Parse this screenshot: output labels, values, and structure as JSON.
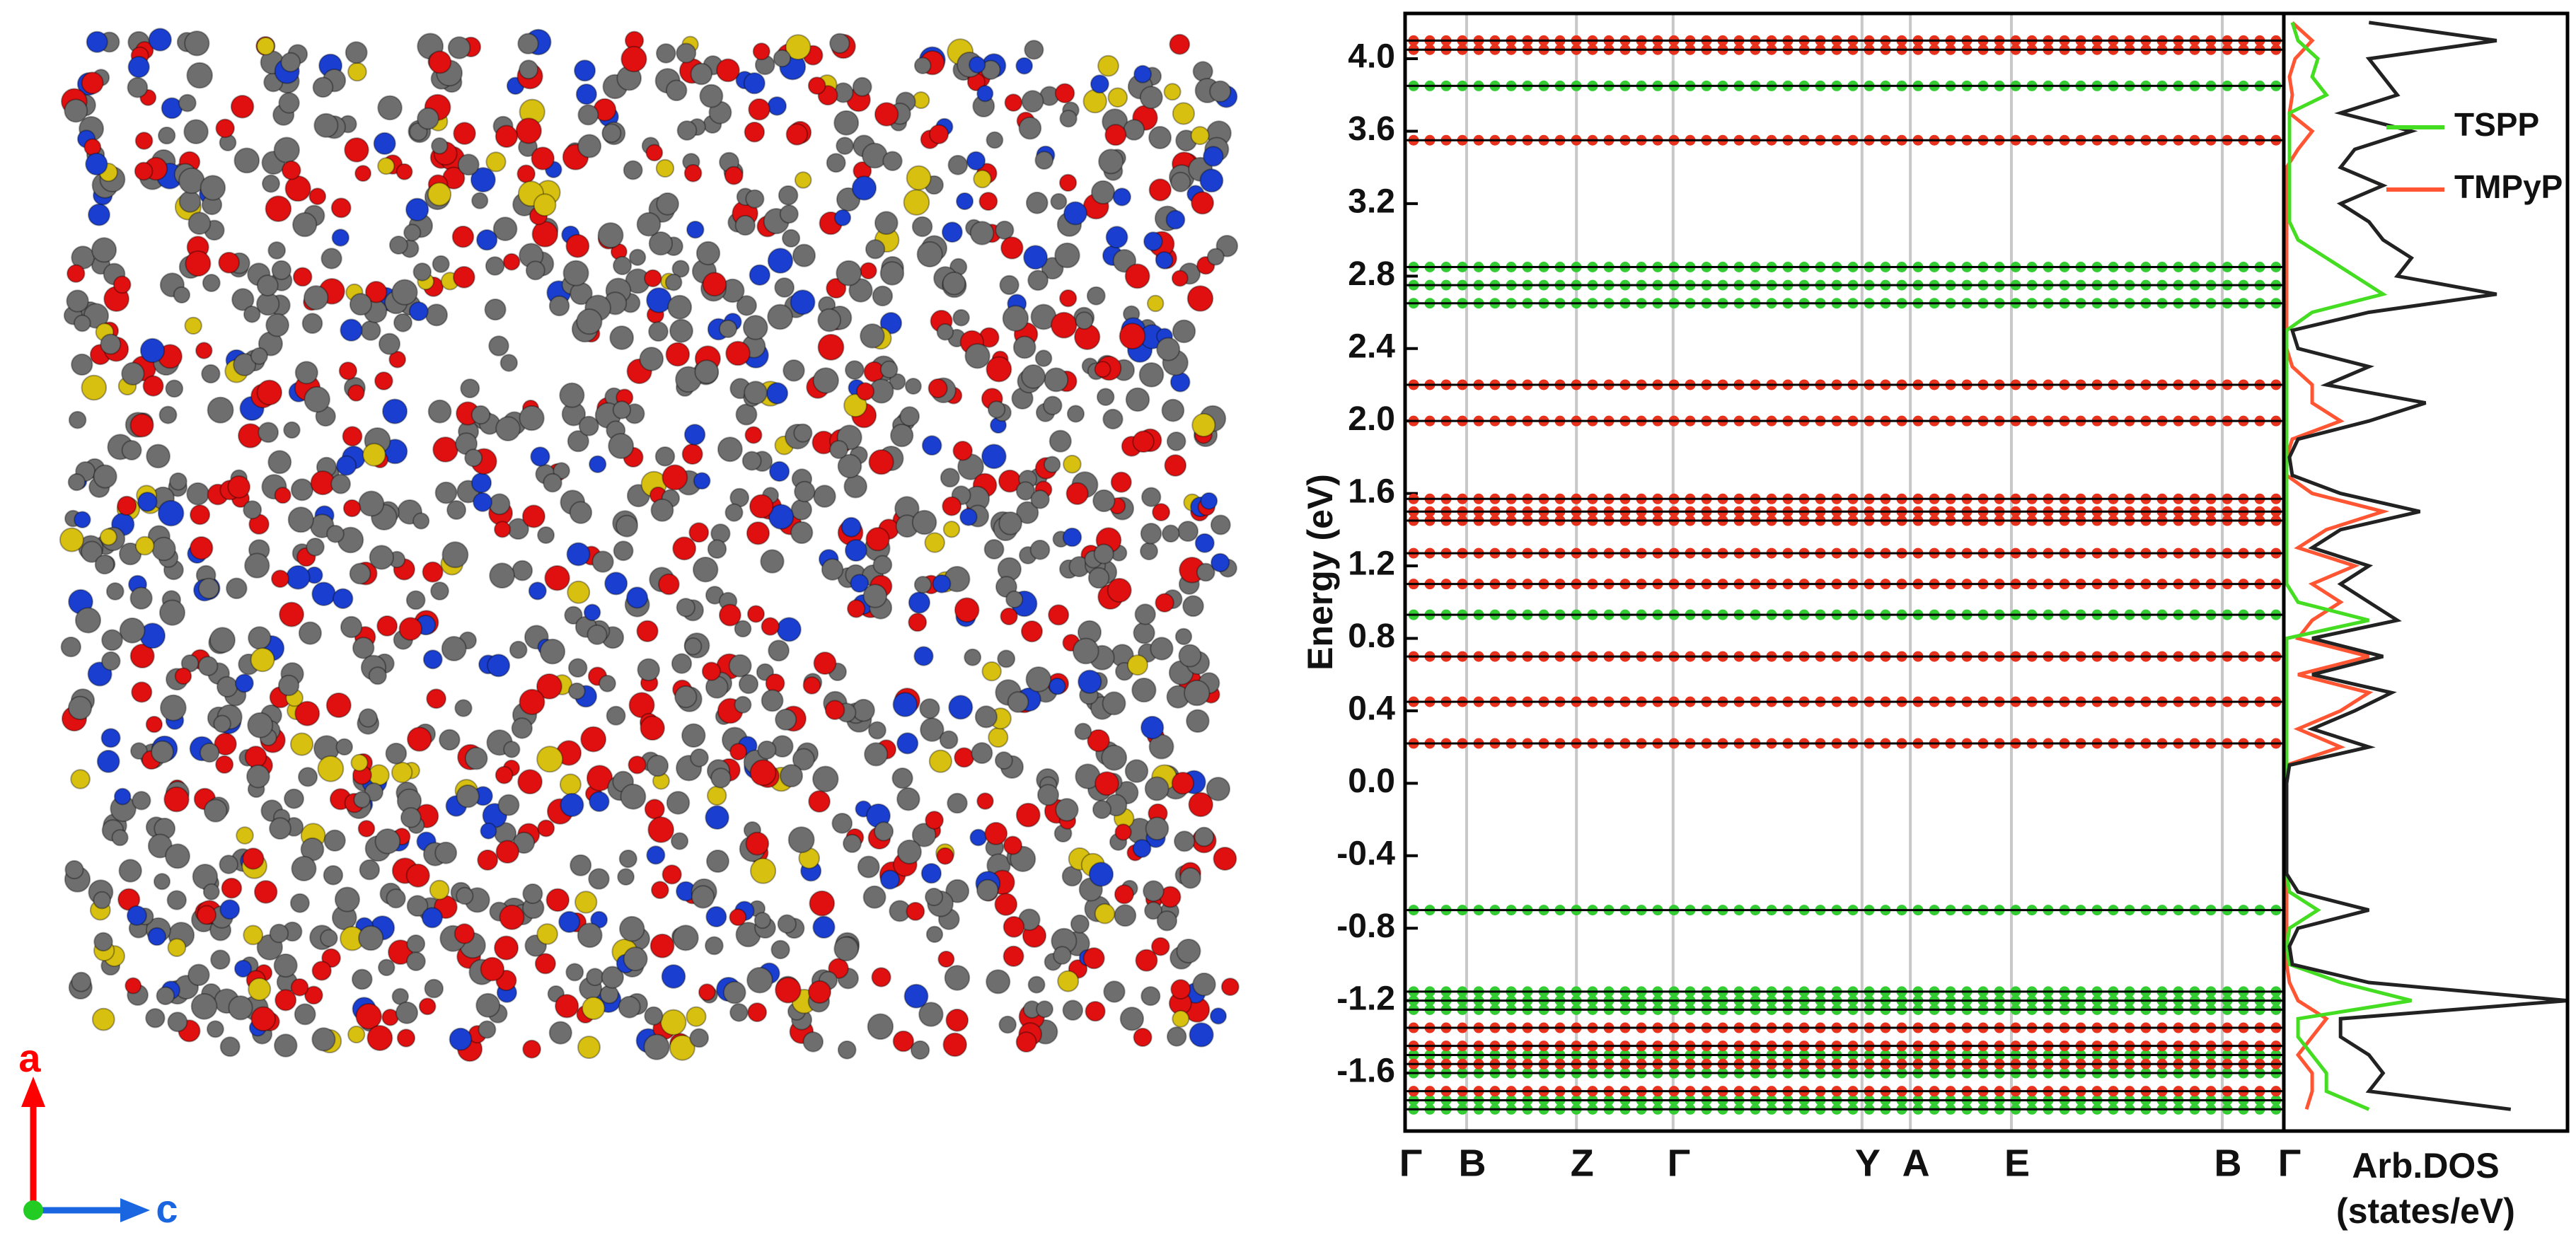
{
  "structure": {
    "axis_labels": [
      "a",
      "c"
    ]
  },
  "chart_data": [
    {
      "type": "band",
      "ylabel": "Energy (eV)",
      "ylim": [
        -1.92,
        4.25
      ],
      "yticks": [
        -1.6,
        -1.2,
        -0.8,
        -0.4,
        {
          "value": 0,
          "label": "0.0"
        },
        0.4,
        0.8,
        1.2,
        1.6,
        {
          "value": 2,
          "label": "2.0"
        },
        2.4,
        2.8,
        3.2,
        3.6,
        {
          "value": 4,
          "label": "4.0"
        }
      ],
      "xlim": [
        0,
        1
      ],
      "xticks": [
        {
          "value": 0,
          "label": "Γ"
        },
        {
          "value": 0.07,
          "label": "B"
        },
        {
          "value": 0.195,
          "label": "Z"
        },
        {
          "value": 0.305,
          "label": "Γ"
        },
        {
          "value": 0.52,
          "label": "Y"
        },
        {
          "value": 0.575,
          "label": "A"
        },
        {
          "value": 0.69,
          "label": "E"
        },
        {
          "value": 0.93,
          "label": "B"
        },
        {
          "value": 1,
          "label": "Γ"
        }
      ],
      "grid": true,
      "levels": [
        {
          "color": "#33cc33",
          "energies": [
            3.85,
            2.85,
            2.75,
            2.65,
            0.93,
            -0.7,
            -1.15,
            -1.2,
            -1.25,
            -1.5,
            -1.6,
            -1.75,
            -1.8
          ]
        },
        {
          "color": "#e8321e",
          "energies": [
            4.1,
            4.05,
            3.55,
            2.2,
            2.0,
            1.57,
            1.5,
            1.45,
            1.27,
            1.1,
            0.7,
            0.45,
            0.22,
            -1.35,
            -1.45,
            -1.55,
            -1.7
          ]
        }
      ]
    },
    {
      "type": "dos",
      "xlabel": [
        "Arb.DOS",
        "(states/eV)"
      ],
      "ylim": [
        -1.92,
        4.25
      ],
      "xlim": [
        0,
        1
      ],
      "legend": "upper right",
      "energy": [
        -1.8,
        -1.7,
        -1.6,
        -1.5,
        -1.4,
        -1.3,
        -1.2,
        -1.1,
        -1.0,
        -0.9,
        -0.8,
        -0.7,
        -0.6,
        -0.5,
        -0.4,
        -0.3,
        -0.2,
        -0.1,
        0,
        0.1,
        0.2,
        0.3,
        0.4,
        0.5,
        0.6,
        0.7,
        0.8,
        0.9,
        1.0,
        1.1,
        1.2,
        1.3,
        1.4,
        1.5,
        1.6,
        1.7,
        1.8,
        1.9,
        2.0,
        2.1,
        2.2,
        2.3,
        2.4,
        2.5,
        2.6,
        2.7,
        2.8,
        2.9,
        3.0,
        3.1,
        3.2,
        3.3,
        3.4,
        3.5,
        3.6,
        3.7,
        3.8,
        3.9,
        4.0,
        4.1,
        4.2
      ],
      "series": [
        {
          "color": "#222222",
          "values": [
            0.8,
            0.3,
            0.35,
            0.3,
            0.2,
            0.2,
            1.0,
            0.3,
            0.03,
            0.02,
            0.05,
            0.3,
            0.05,
            0.01,
            0.01,
            0.01,
            0.01,
            0.01,
            0.01,
            0.02,
            0.3,
            0.1,
            0.25,
            0.38,
            0.1,
            0.35,
            0.1,
            0.4,
            0.3,
            0.2,
            0.3,
            0.1,
            0.2,
            0.48,
            0.2,
            0.03,
            0.02,
            0.05,
            0.3,
            0.5,
            0.15,
            0.3,
            0.05,
            0.03,
            0.3,
            0.75,
            0.4,
            0.45,
            0.35,
            0.3,
            0.2,
            0.35,
            0.2,
            0.25,
            0.45,
            0.2,
            0.4,
            0.35,
            0.3,
            0.75,
            0.3
          ]
        },
        {
          "name": "TSPP",
          "color": "#44dd22",
          "values": [
            0.3,
            0.15,
            0.15,
            0.1,
            0.05,
            0.05,
            0.45,
            0.2,
            0.02,
            0.01,
            0.02,
            0.12,
            0.02,
            0.01,
            0.01,
            0.01,
            0.01,
            0.01,
            0.01,
            0.01,
            0.01,
            0.01,
            0.01,
            0.01,
            0.01,
            0.01,
            0.01,
            0.3,
            0.05,
            0.01,
            0.01,
            0.01,
            0.01,
            0.01,
            0.01,
            0.01,
            0.01,
            0.01,
            0.01,
            0.01,
            0.01,
            0.01,
            0.01,
            0.01,
            0.1,
            0.35,
            0.25,
            0.15,
            0.05,
            0.02,
            0.02,
            0.02,
            0.02,
            0.02,
            0.02,
            0.02,
            0.15,
            0.1,
            0.12,
            0.05,
            0.03
          ]
        },
        {
          "name": "TMPyP",
          "color": "#ff5533",
          "values": [
            0.08,
            0.1,
            0.1,
            0.05,
            0.1,
            0.15,
            0.05,
            0.02,
            0.01,
            0.01,
            0.01,
            0.01,
            0.01,
            0.01,
            0.01,
            0.01,
            0.01,
            0.01,
            0.01,
            0.01,
            0.2,
            0.05,
            0.2,
            0.3,
            0.05,
            0.3,
            0.05,
            0.1,
            0.2,
            0.1,
            0.25,
            0.05,
            0.15,
            0.35,
            0.1,
            0.01,
            0.01,
            0.03,
            0.2,
            0.1,
            0.1,
            0.03,
            0.01,
            0.01,
            0.01,
            0.01,
            0.01,
            0.01,
            0.01,
            0.01,
            0.01,
            0.01,
            0.01,
            0.05,
            0.1,
            0.02,
            0.03,
            0.02,
            0.04,
            0.1,
            0.03
          ]
        }
      ]
    }
  ]
}
